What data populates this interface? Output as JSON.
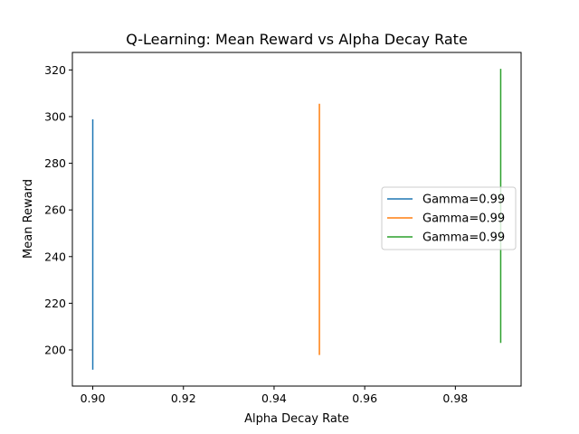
{
  "chart_data": {
    "type": "line",
    "title": "Q-Learning: Mean Reward vs Alpha Decay Rate",
    "xlabel": "Alpha Decay Rate",
    "ylabel": "Mean Reward",
    "xlim": [
      0.8955,
      0.9945
    ],
    "ylim": [
      184.5,
      327.5
    ],
    "xticks": [
      0.9,
      0.92,
      0.94,
      0.96,
      0.98
    ],
    "xtick_labels": [
      "0.90",
      "0.92",
      "0.94",
      "0.96",
      "0.98"
    ],
    "yticks": [
      200,
      220,
      240,
      260,
      280,
      300,
      320
    ],
    "ytick_labels": [
      "200",
      "220",
      "240",
      "260",
      "280",
      "300",
      "320"
    ],
    "grid": false,
    "legend_position": "center-right",
    "series": [
      {
        "name": "Gamma=0.99",
        "color": "#1f77b4",
        "x": [
          0.9,
          0.9
        ],
        "y": [
          191.5,
          298.8
        ]
      },
      {
        "name": "Gamma=0.99",
        "color": "#ff7f0e",
        "x": [
          0.95,
          0.95
        ],
        "y": [
          197.8,
          305.5
        ]
      },
      {
        "name": "Gamma=0.99",
        "color": "#2ca02c",
        "x": [
          0.99,
          0.99
        ],
        "y": [
          203.0,
          320.5
        ]
      }
    ]
  }
}
